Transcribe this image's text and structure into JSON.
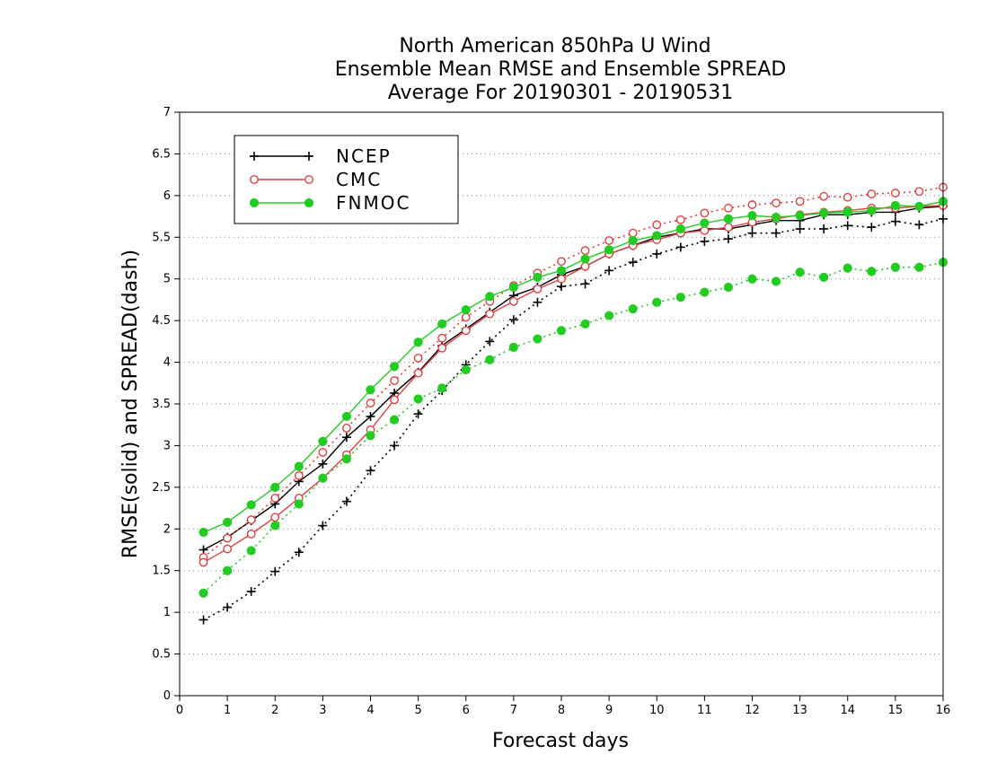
{
  "chart_data": {
    "type": "line",
    "title": "North American 850hPa U Wind",
    "subtitle": "Ensemble Mean RMSE and Ensemble SPREAD",
    "period": "Average For 20190301 - 20190531",
    "xlabel": "Forecast days",
    "ylabel": "RMSE(solid) and SPREAD(dash)",
    "xlim": [
      0,
      16
    ],
    "ylim": [
      0,
      7
    ],
    "xticks": [
      0,
      1,
      2,
      3,
      4,
      5,
      6,
      7,
      8,
      9,
      10,
      11,
      12,
      13,
      14,
      15,
      16
    ],
    "yticks": [
      0,
      0.5,
      1,
      1.5,
      2,
      2.5,
      3,
      3.5,
      4,
      4.5,
      5,
      5.5,
      6,
      6.5,
      7
    ],
    "grid": "horizontal dotted",
    "legend_position": "top-left",
    "x": [
      0.5,
      1,
      1.5,
      2,
      2.5,
      3,
      3.5,
      4,
      4.5,
      5,
      5.5,
      6,
      6.5,
      7,
      7.5,
      8,
      8.5,
      9,
      9.5,
      10,
      10.5,
      11,
      11.5,
      12,
      12.5,
      13,
      13.5,
      14,
      14.5,
      15,
      15.5,
      16
    ],
    "series": [
      {
        "name": "NCEP",
        "color": "#000000",
        "marker": "plus",
        "rmse": [
          1.75,
          1.9,
          2.1,
          2.3,
          2.57,
          2.78,
          3.1,
          3.35,
          3.63,
          3.88,
          4.2,
          4.4,
          4.6,
          4.8,
          4.9,
          5.05,
          5.15,
          5.3,
          5.4,
          5.5,
          5.55,
          5.6,
          5.6,
          5.65,
          5.7,
          5.7,
          5.77,
          5.77,
          5.8,
          5.8,
          5.85,
          5.87
        ],
        "spread": [
          0.91,
          1.06,
          1.25,
          1.49,
          1.72,
          2.04,
          2.33,
          2.7,
          3.0,
          3.38,
          3.66,
          3.97,
          4.25,
          4.51,
          4.72,
          4.91,
          4.94,
          5.1,
          5.2,
          5.3,
          5.38,
          5.45,
          5.48,
          5.55,
          5.55,
          5.6,
          5.6,
          5.64,
          5.62,
          5.69,
          5.65,
          5.72
        ]
      },
      {
        "name": "CMC",
        "color": "#e04040",
        "marker": "circle-open",
        "rmse": [
          1.6,
          1.76,
          1.94,
          2.14,
          2.37,
          2.61,
          2.89,
          3.19,
          3.55,
          3.87,
          4.17,
          4.38,
          4.58,
          4.73,
          4.88,
          5.0,
          5.15,
          5.3,
          5.4,
          5.47,
          5.55,
          5.58,
          5.62,
          5.68,
          5.72,
          5.77,
          5.8,
          5.82,
          5.85,
          5.85,
          5.87,
          5.88
        ],
        "spread": [
          1.66,
          1.89,
          2.11,
          2.37,
          2.64,
          2.92,
          3.21,
          3.51,
          3.78,
          4.05,
          4.29,
          4.54,
          4.73,
          4.92,
          5.07,
          5.21,
          5.34,
          5.46,
          5.55,
          5.65,
          5.71,
          5.79,
          5.85,
          5.89,
          5.91,
          5.93,
          5.99,
          5.98,
          6.02,
          6.03,
          6.05,
          6.1
        ]
      },
      {
        "name": "FNMOC",
        "color": "#22cc22",
        "marker": "circle-filled",
        "rmse": [
          1.96,
          2.08,
          2.29,
          2.5,
          2.75,
          3.05,
          3.35,
          3.67,
          3.95,
          4.24,
          4.46,
          4.63,
          4.79,
          4.9,
          5.02,
          5.1,
          5.24,
          5.35,
          5.46,
          5.52,
          5.6,
          5.67,
          5.72,
          5.76,
          5.74,
          5.76,
          5.79,
          5.8,
          5.82,
          5.88,
          5.87,
          5.93
        ],
        "spread": [
          1.23,
          1.5,
          1.74,
          2.04,
          2.3,
          2.61,
          2.84,
          3.12,
          3.31,
          3.56,
          3.69,
          3.91,
          4.03,
          4.18,
          4.28,
          4.38,
          4.46,
          4.56,
          4.64,
          4.72,
          4.78,
          4.84,
          4.9,
          5.0,
          4.97,
          5.08,
          5.02,
          5.13,
          5.09,
          5.14,
          5.14,
          5.2
        ]
      }
    ]
  }
}
